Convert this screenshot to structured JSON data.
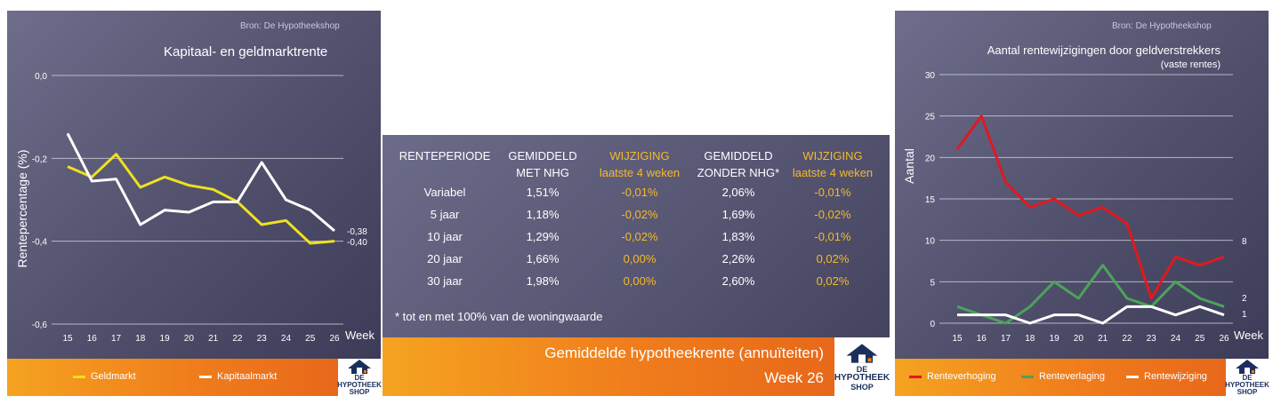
{
  "left": {
    "source": "Bron: De Hypotheekshop",
    "title": "Kapitaal- en geldmarktrente",
    "logo": {
      "line1": "DE",
      "line2": "HYPOTHEEK",
      "line3": "SHOP"
    },
    "chart_data": {
      "type": "line",
      "title": "Kapitaal- en geldmarktrente",
      "xlabel": "Week",
      "ylabel": "Rentepercentage (%)",
      "categories": [
        "15",
        "16",
        "17",
        "18",
        "19",
        "20",
        "21",
        "22",
        "23",
        "24",
        "25",
        "26"
      ],
      "yticks": [
        "0,0",
        "-0,2",
        "-0,4",
        "-0,6"
      ],
      "ylim": [
        -0.6,
        0.0
      ],
      "grid": true,
      "legend": "bottom",
      "series": [
        {
          "name": "Geldmarkt",
          "color": "#f0e11e",
          "values": [
            -0.22,
            -0.245,
            -0.19,
            -0.27,
            -0.245,
            -0.265,
            -0.275,
            -0.305,
            -0.36,
            -0.35,
            -0.405,
            -0.4
          ]
        },
        {
          "name": "Kapitaalmarkt",
          "color": "#ffffff",
          "values": [
            -0.14,
            -0.255,
            -0.25,
            -0.36,
            -0.325,
            -0.33,
            -0.305,
            -0.305,
            -0.21,
            -0.3,
            -0.325,
            -0.375
          ]
        }
      ],
      "end_labels": [
        "-0,38",
        "-0,40"
      ]
    }
  },
  "middle": {
    "headers": [
      {
        "l1": "RENTEPERIODE",
        "l2": "",
        "color": "#ffffff"
      },
      {
        "l1": "GEMIDDELD",
        "l2": "MET NHG",
        "color": "#ffffff"
      },
      {
        "l1": "WIJZIGING",
        "l2": "laatste 4 weken",
        "color": "#f5b92a"
      },
      {
        "l1": "GEMIDDELD",
        "l2": "ZONDER NHG*",
        "color": "#ffffff"
      },
      {
        "l1": "WIJZIGING",
        "l2": "laatste 4 weken",
        "color": "#f5b92a"
      }
    ],
    "rows": [
      [
        "Variabel",
        "1,51%",
        "-0,01%",
        "2,06%",
        "-0,01%"
      ],
      [
        "5 jaar",
        "1,18%",
        "-0,02%",
        "1,69%",
        "-0,02%"
      ],
      [
        "10 jaar",
        "1,29%",
        "-0,02%",
        "1,83%",
        "-0,01%"
      ],
      [
        "20 jaar",
        "1,66%",
        "0,00%",
        "2,26%",
        "0,02%"
      ],
      [
        "30 jaar",
        "1,98%",
        "0,00%",
        "2,60%",
        "0,02%"
      ]
    ],
    "footnote": "* tot en met 100% van de woningwaarde",
    "banner_title": "Gemiddelde hypotheekrente (annuïteiten)",
    "banner_week": "Week 26",
    "logo": {
      "line1": "DE",
      "line2": "HYPOTHEEK",
      "line3": "SHOP"
    }
  },
  "right": {
    "source": "Bron: De Hypotheekshop",
    "title": "Aantal rentewijzigingen door geldverstrekkers",
    "subtitle": "(vaste rentes)",
    "logo": {
      "line1": "DE",
      "line2": "HYPOTHEEK",
      "line3": "SHOP"
    },
    "chart_data": {
      "type": "line",
      "title": "Aantal rentewijzigingen door geldverstrekkers",
      "subtitle": "(vaste rentes)",
      "xlabel": "Week",
      "ylabel": "Aantal",
      "categories": [
        "15",
        "16",
        "17",
        "18",
        "19",
        "20",
        "21",
        "22",
        "23",
        "24",
        "25",
        "26"
      ],
      "yticks": [
        "0",
        "5",
        "10",
        "15",
        "20",
        "25",
        "30"
      ],
      "ylim": [
        0,
        30
      ],
      "grid": true,
      "legend": "bottom",
      "series": [
        {
          "name": "Renteverhoging",
          "color": "#e0191e",
          "values": [
            21,
            25,
            17,
            14,
            15,
            13,
            14,
            12,
            3,
            8,
            7,
            8
          ]
        },
        {
          "name": "Renteverlaging",
          "color": "#4ca35a",
          "values": [
            2,
            1,
            0,
            2,
            5,
            3,
            7,
            3,
            2,
            5,
            3,
            2
          ]
        },
        {
          "name": "Rentewijziging",
          "color": "#ffffff",
          "values": [
            1,
            1,
            1,
            0,
            1,
            1,
            0,
            2,
            2,
            1,
            2,
            1
          ]
        }
      ],
      "end_labels": [
        "8",
        "2",
        "1"
      ]
    }
  }
}
